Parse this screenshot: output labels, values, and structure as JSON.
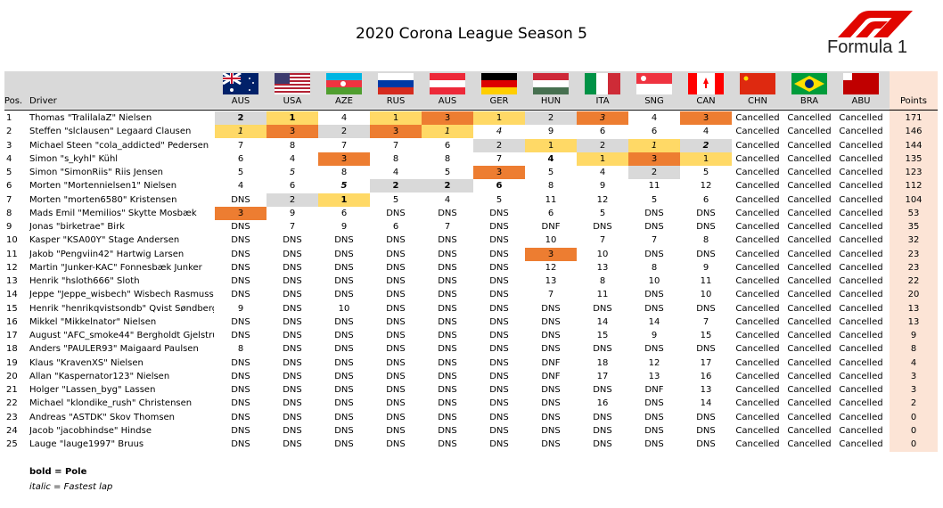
{
  "title": "2020 Corona League Season 5",
  "logo_text": "FORMULA 1",
  "headers": {
    "pos": "Pos.",
    "driver": "Driver",
    "points": "Points"
  },
  "races": [
    {
      "code": "AUS",
      "flag": "australia"
    },
    {
      "code": "USA",
      "flag": "usa"
    },
    {
      "code": "AZE",
      "flag": "azerbaijan"
    },
    {
      "code": "RUS",
      "flag": "russia"
    },
    {
      "code": "AUS",
      "flag": "austria"
    },
    {
      "code": "GER",
      "flag": "germany"
    },
    {
      "code": "HUN",
      "flag": "hungary"
    },
    {
      "code": "ITA",
      "flag": "italy"
    },
    {
      "code": "SNG",
      "flag": "singapore"
    },
    {
      "code": "CAN",
      "flag": "canada"
    },
    {
      "code": "CHN",
      "flag": "china"
    },
    {
      "code": "BRA",
      "flag": "brazil"
    },
    {
      "code": "ABU",
      "flag": "abu-dhabi"
    }
  ],
  "colors": {
    "first": "#ffd966",
    "second": "#d9d9d9",
    "third": "#ed7d31",
    "points_bg": "#fce4d6"
  },
  "rows": [
    {
      "pos": "1",
      "driver": "Thomas \"TralilalaZ\" Nielsen",
      "results": [
        "2",
        "1",
        "4",
        "1",
        "3",
        "1",
        "2",
        "3",
        "4",
        "3",
        "Cancelled",
        "Cancelled",
        "Cancelled"
      ],
      "points": "171",
      "bold": [
        0,
        1
      ],
      "italic": [
        7
      ]
    },
    {
      "pos": "2",
      "driver": "Steffen \"slclausen\" Legaard Clausen",
      "results": [
        "1",
        "3",
        "2",
        "3",
        "1",
        "4",
        "9",
        "6",
        "6",
        "4",
        "Cancelled",
        "Cancelled",
        "Cancelled"
      ],
      "points": "146",
      "bold": [],
      "italic": [
        0,
        4,
        5
      ]
    },
    {
      "pos": "3",
      "driver": "Michael Steen \"cola_addicted\" Pedersen",
      "results": [
        "7",
        "8",
        "7",
        "7",
        "6",
        "2",
        "1",
        "2",
        "1",
        "2",
        "Cancelled",
        "Cancelled",
        "Cancelled"
      ],
      "points": "144",
      "bold": [
        9
      ],
      "italic": [
        8,
        9
      ]
    },
    {
      "pos": "4",
      "driver": "Simon \"s_kyhl\" Kühl",
      "results": [
        "6",
        "4",
        "3",
        "8",
        "8",
        "7",
        "4",
        "1",
        "3",
        "1",
        "Cancelled",
        "Cancelled",
        "Cancelled"
      ],
      "points": "135",
      "bold": [
        6
      ],
      "italic": []
    },
    {
      "pos": "5",
      "driver": "Simon \"SimonRiis\" Riis Jensen",
      "results": [
        "5",
        "5",
        "8",
        "4",
        "5",
        "3",
        "5",
        "4",
        "2",
        "5",
        "Cancelled",
        "Cancelled",
        "Cancelled"
      ],
      "points": "123",
      "bold": [],
      "italic": [
        1
      ]
    },
    {
      "pos": "6",
      "driver": "Morten \"Mortennielsen1\" Nielsen",
      "results": [
        "4",
        "6",
        "5",
        "2",
        "2",
        "6",
        "8",
        "9",
        "11",
        "12",
        "Cancelled",
        "Cancelled",
        "Cancelled"
      ],
      "points": "112",
      "bold": [
        2,
        3,
        4,
        5
      ],
      "italic": [
        2
      ]
    },
    {
      "pos": "7",
      "driver": "Morten \"morten6580\" Kristensen",
      "results": [
        "DNS",
        "2",
        "1",
        "5",
        "4",
        "5",
        "11",
        "12",
        "5",
        "6",
        "Cancelled",
        "Cancelled",
        "Cancelled"
      ],
      "points": "104",
      "bold": [
        2
      ],
      "italic": []
    },
    {
      "pos": "8",
      "driver": "Mads Emil \"Memilios\" Skytte Mosbæk",
      "results": [
        "3",
        "9",
        "6",
        "DNS",
        "DNS",
        "DNS",
        "6",
        "5",
        "DNS",
        "DNS",
        "Cancelled",
        "Cancelled",
        "Cancelled"
      ],
      "points": "53",
      "bold": [],
      "italic": []
    },
    {
      "pos": "9",
      "driver": "Jonas \"birketrae\" Birk",
      "results": [
        "DNS",
        "7",
        "9",
        "6",
        "7",
        "DNS",
        "DNF",
        "DNS",
        "DNS",
        "DNS",
        "Cancelled",
        "Cancelled",
        "Cancelled"
      ],
      "points": "35",
      "bold": [],
      "italic": []
    },
    {
      "pos": "10",
      "driver": "Kasper \"KSA00Y\" Stage Andersen",
      "results": [
        "DNS",
        "DNS",
        "DNS",
        "DNS",
        "DNS",
        "DNS",
        "10",
        "7",
        "7",
        "8",
        "Cancelled",
        "Cancelled",
        "Cancelled"
      ],
      "points": "32",
      "bold": [],
      "italic": []
    },
    {
      "pos": "11",
      "driver": "Jakob \"Pengviin42\" Hartwig Larsen",
      "results": [
        "DNS",
        "DNS",
        "DNS",
        "DNS",
        "DNS",
        "DNS",
        "3",
        "10",
        "DNS",
        "DNS",
        "Cancelled",
        "Cancelled",
        "Cancelled"
      ],
      "points": "23",
      "bold": [],
      "italic": []
    },
    {
      "pos": "12",
      "driver": "Martin \"Junker-KAC\" Fonnesbæk Junker",
      "results": [
        "DNS",
        "DNS",
        "DNS",
        "DNS",
        "DNS",
        "DNS",
        "12",
        "13",
        "8",
        "9",
        "Cancelled",
        "Cancelled",
        "Cancelled"
      ],
      "points": "23",
      "bold": [],
      "italic": []
    },
    {
      "pos": "13",
      "driver": "Henrik \"hsloth666\" Sloth",
      "results": [
        "DNS",
        "DNS",
        "DNS",
        "DNS",
        "DNS",
        "DNS",
        "13",
        "8",
        "10",
        "11",
        "Cancelled",
        "Cancelled",
        "Cancelled"
      ],
      "points": "22",
      "bold": [],
      "italic": []
    },
    {
      "pos": "14",
      "driver": "Jeppe \"Jeppe_wisbech\" Wisbech Rasmussen",
      "results": [
        "DNS",
        "DNS",
        "DNS",
        "DNS",
        "DNS",
        "DNS",
        "7",
        "11",
        "DNS",
        "10",
        "Cancelled",
        "Cancelled",
        "Cancelled"
      ],
      "points": "20",
      "bold": [],
      "italic": []
    },
    {
      "pos": "15",
      "driver": "Henrik \"henrikqvistsondb\" Qvist Søndberg",
      "results": [
        "9",
        "DNS",
        "10",
        "DNS",
        "DNS",
        "DNS",
        "DNS",
        "DNS",
        "DNS",
        "DNS",
        "Cancelled",
        "Cancelled",
        "Cancelled"
      ],
      "points": "13",
      "bold": [],
      "italic": []
    },
    {
      "pos": "16",
      "driver": "Mikkel \"Mikkelnator\" Nielsen",
      "results": [
        "DNS",
        "DNS",
        "DNS",
        "DNS",
        "DNS",
        "DNS",
        "DNS",
        "14",
        "14",
        "7",
        "Cancelled",
        "Cancelled",
        "Cancelled"
      ],
      "points": "13",
      "bold": [],
      "italic": []
    },
    {
      "pos": "17",
      "driver": "August \"AFC_smoke44\" Bergholdt Gjelstrup",
      "results": [
        "DNS",
        "DNS",
        "DNS",
        "DNS",
        "DNS",
        "DNS",
        "DNS",
        "15",
        "9",
        "15",
        "Cancelled",
        "Cancelled",
        "Cancelled"
      ],
      "points": "9",
      "bold": [],
      "italic": []
    },
    {
      "pos": "18",
      "driver": "Anders \"PAULER93\" Maigaard Paulsen",
      "results": [
        "8",
        "DNS",
        "DNS",
        "DNS",
        "DNS",
        "DNS",
        "DNS",
        "DNS",
        "DNS",
        "DNS",
        "Cancelled",
        "Cancelled",
        "Cancelled"
      ],
      "points": "8",
      "bold": [],
      "italic": []
    },
    {
      "pos": "19",
      "driver": "Klaus \"KravenXS\" Nielsen",
      "results": [
        "DNS",
        "DNS",
        "DNS",
        "DNS",
        "DNS",
        "DNS",
        "DNF",
        "18",
        "12",
        "17",
        "Cancelled",
        "Cancelled",
        "Cancelled"
      ],
      "points": "4",
      "bold": [],
      "italic": []
    },
    {
      "pos": "20",
      "driver": "Allan \"Kaspernator123\" Nielsen",
      "results": [
        "DNS",
        "DNS",
        "DNS",
        "DNS",
        "DNS",
        "DNS",
        "DNF",
        "17",
        "13",
        "16",
        "Cancelled",
        "Cancelled",
        "Cancelled"
      ],
      "points": "3",
      "bold": [],
      "italic": []
    },
    {
      "pos": "21",
      "driver": "Holger \"Lassen_byg\" Lassen",
      "results": [
        "DNS",
        "DNS",
        "DNS",
        "DNS",
        "DNS",
        "DNS",
        "DNS",
        "DNS",
        "DNF",
        "13",
        "Cancelled",
        "Cancelled",
        "Cancelled"
      ],
      "points": "3",
      "bold": [],
      "italic": []
    },
    {
      "pos": "22",
      "driver": "Michael \"klondike_rush\" Christensen",
      "results": [
        "DNS",
        "DNS",
        "DNS",
        "DNS",
        "DNS",
        "DNS",
        "DNS",
        "16",
        "DNS",
        "14",
        "Cancelled",
        "Cancelled",
        "Cancelled"
      ],
      "points": "2",
      "bold": [],
      "italic": []
    },
    {
      "pos": "23",
      "driver": "Andreas \"ASTDK\" Skov Thomsen",
      "results": [
        "DNS",
        "DNS",
        "DNS",
        "DNS",
        "DNS",
        "DNS",
        "DNS",
        "DNS",
        "DNS",
        "DNS",
        "Cancelled",
        "Cancelled",
        "Cancelled"
      ],
      "points": "0",
      "bold": [],
      "italic": []
    },
    {
      "pos": "24",
      "driver": "Jacob \"jacobhindse\" Hindse",
      "results": [
        "DNS",
        "DNS",
        "DNS",
        "DNS",
        "DNS",
        "DNS",
        "DNS",
        "DNS",
        "DNS",
        "DNS",
        "Cancelled",
        "Cancelled",
        "Cancelled"
      ],
      "points": "0",
      "bold": [],
      "italic": []
    },
    {
      "pos": "25",
      "driver": "Lauge \"lauge1997\" Bruus",
      "results": [
        "DNS",
        "DNS",
        "DNS",
        "DNS",
        "DNS",
        "DNS",
        "DNS",
        "DNS",
        "DNS",
        "DNS",
        "Cancelled",
        "Cancelled",
        "Cancelled"
      ],
      "points": "0",
      "bold": [],
      "italic": []
    }
  ],
  "legend": {
    "bold": "bold = Pole",
    "italic": "italic = Fastest lap"
  }
}
